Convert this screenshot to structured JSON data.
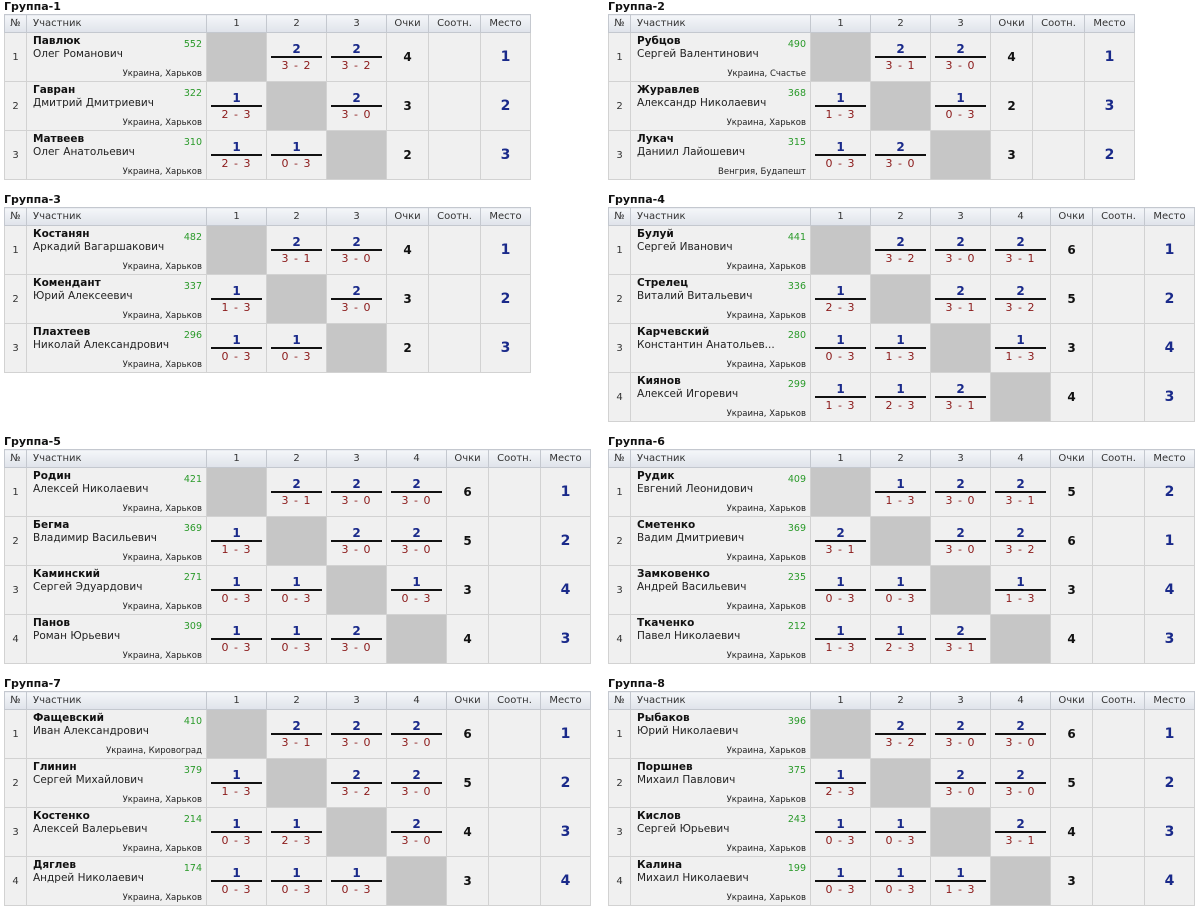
{
  "headers": {
    "num": "№",
    "player": "Участник",
    "points": "Очки",
    "ratio": "Соотн.",
    "place": "Место"
  },
  "groups": [
    {
      "title": "Группа-1",
      "cols": [
        "1",
        "2",
        "3"
      ],
      "players": [
        {
          "num": "1",
          "surname": "Павлюк",
          "first": "Олег Романович",
          "rating": "552",
          "city": "Украина, Харьков",
          "points": "4",
          "ratio": "",
          "place": "1",
          "cells": [
            null,
            {
              "w": "2",
              "s": "3 - 2"
            },
            {
              "w": "2",
              "s": "3 - 2"
            }
          ]
        },
        {
          "num": "2",
          "surname": "Гавран",
          "first": "Дмитрий Дмитриевич",
          "rating": "322",
          "city": "Украина, Харьков",
          "points": "3",
          "ratio": "",
          "place": "2",
          "cells": [
            {
              "w": "1",
              "s": "2 - 3"
            },
            null,
            {
              "w": "2",
              "s": "3 - 0"
            }
          ]
        },
        {
          "num": "3",
          "surname": "Матвеев",
          "first": "Олег Анатольевич",
          "rating": "310",
          "city": "Украина, Харьков",
          "points": "2",
          "ratio": "",
          "place": "3",
          "cells": [
            {
              "w": "1",
              "s": "2 - 3"
            },
            {
              "w": "1",
              "s": "0 - 3"
            },
            null
          ]
        }
      ]
    },
    {
      "title": "Группа-2",
      "cols": [
        "1",
        "2",
        "3"
      ],
      "players": [
        {
          "num": "1",
          "surname": "Рубцов",
          "first": "Сергей Валентинович",
          "rating": "490",
          "city": "Украина, Счастье",
          "points": "4",
          "ratio": "",
          "place": "1",
          "cells": [
            null,
            {
              "w": "2",
              "s": "3 - 1"
            },
            {
              "w": "2",
              "s": "3 - 0"
            }
          ]
        },
        {
          "num": "2",
          "surname": "Журавлев",
          "first": "Александр Николаевич",
          "rating": "368",
          "city": "Украина, Харьков",
          "points": "2",
          "ratio": "",
          "place": "3",
          "cells": [
            {
              "w": "1",
              "s": "1 - 3"
            },
            null,
            {
              "w": "1",
              "s": "0 - 3"
            }
          ]
        },
        {
          "num": "3",
          "surname": "Лукач",
          "first": "Даниил Лайошевич",
          "rating": "315",
          "city": "Венгрия, Будапешт",
          "points": "3",
          "ratio": "",
          "place": "2",
          "cells": [
            {
              "w": "1",
              "s": "0 - 3"
            },
            {
              "w": "2",
              "s": "3 - 0"
            },
            null
          ]
        }
      ]
    },
    {
      "title": "Группа-3",
      "cols": [
        "1",
        "2",
        "3"
      ],
      "players": [
        {
          "num": "1",
          "surname": "Костанян",
          "first": "Аркадий Вагаршакович",
          "rating": "482",
          "city": "Украина, Харьков",
          "points": "4",
          "ratio": "",
          "place": "1",
          "cells": [
            null,
            {
              "w": "2",
              "s": "3 - 1"
            },
            {
              "w": "2",
              "s": "3 - 0"
            }
          ]
        },
        {
          "num": "2",
          "surname": "Комендант",
          "first": "Юрий Алексеевич",
          "rating": "337",
          "city": "Украина, Харьков",
          "points": "3",
          "ratio": "",
          "place": "2",
          "cells": [
            {
              "w": "1",
              "s": "1 - 3"
            },
            null,
            {
              "w": "2",
              "s": "3 - 0"
            }
          ]
        },
        {
          "num": "3",
          "surname": "Плахтеев",
          "first": "Николай Александрович",
          "rating": "296",
          "city": "Украина, Харьков",
          "points": "2",
          "ratio": "",
          "place": "3",
          "cells": [
            {
              "w": "1",
              "s": "0 - 3"
            },
            {
              "w": "1",
              "s": "0 - 3"
            },
            null
          ]
        }
      ]
    },
    {
      "title": "Группа-4",
      "cols": [
        "1",
        "2",
        "3",
        "4"
      ],
      "players": [
        {
          "num": "1",
          "surname": "Булуй",
          "first": "Сергей Иванович",
          "rating": "441",
          "city": "Украина, Харьков",
          "points": "6",
          "ratio": "",
          "place": "1",
          "cells": [
            null,
            {
              "w": "2",
              "s": "3 - 2"
            },
            {
              "w": "2",
              "s": "3 - 0"
            },
            {
              "w": "2",
              "s": "3 - 1"
            }
          ]
        },
        {
          "num": "2",
          "surname": "Стрелец",
          "first": "Виталий Витальевич",
          "rating": "336",
          "city": "Украина, Харьков",
          "points": "5",
          "ratio": "",
          "place": "2",
          "cells": [
            {
              "w": "1",
              "s": "2 - 3"
            },
            null,
            {
              "w": "2",
              "s": "3 - 1"
            },
            {
              "w": "2",
              "s": "3 - 2"
            }
          ]
        },
        {
          "num": "3",
          "surname": "Карчевский",
          "first": "Константин Анатольев...",
          "rating": "280",
          "city": "Украина, Харьков",
          "points": "3",
          "ratio": "",
          "place": "4",
          "cells": [
            {
              "w": "1",
              "s": "0 - 3"
            },
            {
              "w": "1",
              "s": "1 - 3"
            },
            null,
            {
              "w": "1",
              "s": "1 - 3"
            }
          ]
        },
        {
          "num": "4",
          "surname": "Киянов",
          "first": "Алексей Игоревич",
          "rating": "299",
          "city": "Украина, Харьков",
          "points": "4",
          "ratio": "",
          "place": "3",
          "cells": [
            {
              "w": "1",
              "s": "1 - 3"
            },
            {
              "w": "1",
              "s": "2 - 3"
            },
            {
              "w": "2",
              "s": "3 - 1"
            },
            null
          ]
        }
      ]
    },
    {
      "title": "Группа-5",
      "cols": [
        "1",
        "2",
        "3",
        "4"
      ],
      "players": [
        {
          "num": "1",
          "surname": "Родин",
          "first": "Алексей Николаевич",
          "rating": "421",
          "city": "Украина, Харьков",
          "points": "6",
          "ratio": "",
          "place": "1",
          "cells": [
            null,
            {
              "w": "2",
              "s": "3 - 1"
            },
            {
              "w": "2",
              "s": "3 - 0"
            },
            {
              "w": "2",
              "s": "3 - 0"
            }
          ]
        },
        {
          "num": "2",
          "surname": "Бегма",
          "first": "Владимир Васильевич",
          "rating": "369",
          "city": "Украина, Харьков",
          "points": "5",
          "ratio": "",
          "place": "2",
          "cells": [
            {
              "w": "1",
              "s": "1 - 3"
            },
            null,
            {
              "w": "2",
              "s": "3 - 0"
            },
            {
              "w": "2",
              "s": "3 - 0"
            }
          ]
        },
        {
          "num": "3",
          "surname": "Каминский",
          "first": "Сергей Эдуардович",
          "rating": "271",
          "city": "Украина, Харьков",
          "points": "3",
          "ratio": "",
          "place": "4",
          "cells": [
            {
              "w": "1",
              "s": "0 - 3"
            },
            {
              "w": "1",
              "s": "0 - 3"
            },
            null,
            {
              "w": "1",
              "s": "0 - 3"
            }
          ]
        },
        {
          "num": "4",
          "surname": "Панов",
          "first": "Роман Юрьевич",
          "rating": "309",
          "city": "Украина, Харьков",
          "points": "4",
          "ratio": "",
          "place": "3",
          "cells": [
            {
              "w": "1",
              "s": "0 - 3"
            },
            {
              "w": "1",
              "s": "0 - 3"
            },
            {
              "w": "2",
              "s": "3 - 0"
            },
            null
          ]
        }
      ]
    },
    {
      "title": "Группа-6",
      "cols": [
        "1",
        "2",
        "3",
        "4"
      ],
      "players": [
        {
          "num": "1",
          "surname": "Рудик",
          "first": "Евгений Леонидович",
          "rating": "409",
          "city": "Украина, Харьков",
          "points": "5",
          "ratio": "",
          "place": "2",
          "cells": [
            null,
            {
              "w": "1",
              "s": "1 - 3"
            },
            {
              "w": "2",
              "s": "3 - 0"
            },
            {
              "w": "2",
              "s": "3 - 1"
            }
          ]
        },
        {
          "num": "2",
          "surname": "Сметенко",
          "first": "Вадим Дмитриевич",
          "rating": "369",
          "city": "Украина, Харьков",
          "points": "6",
          "ratio": "",
          "place": "1",
          "cells": [
            {
              "w": "2",
              "s": "3 - 1"
            },
            null,
            {
              "w": "2",
              "s": "3 - 0"
            },
            {
              "w": "2",
              "s": "3 - 2"
            }
          ]
        },
        {
          "num": "3",
          "surname": "Замковенко",
          "first": "Андрей Васильевич",
          "rating": "235",
          "city": "Украина, Харьков",
          "points": "3",
          "ratio": "",
          "place": "4",
          "cells": [
            {
              "w": "1",
              "s": "0 - 3"
            },
            {
              "w": "1",
              "s": "0 - 3"
            },
            null,
            {
              "w": "1",
              "s": "1 - 3"
            }
          ]
        },
        {
          "num": "4",
          "surname": "Ткаченко",
          "first": "Павел Николаевич",
          "rating": "212",
          "city": "Украина, Харьков",
          "points": "4",
          "ratio": "",
          "place": "3",
          "cells": [
            {
              "w": "1",
              "s": "1 - 3"
            },
            {
              "w": "1",
              "s": "2 - 3"
            },
            {
              "w": "2",
              "s": "3 - 1"
            },
            null
          ]
        }
      ]
    },
    {
      "title": "Группа-7",
      "cols": [
        "1",
        "2",
        "3",
        "4"
      ],
      "players": [
        {
          "num": "1",
          "surname": "Фащевский",
          "first": "Иван Александрович",
          "rating": "410",
          "city": "Украина, Кировоград",
          "points": "6",
          "ratio": "",
          "place": "1",
          "cells": [
            null,
            {
              "w": "2",
              "s": "3 - 1"
            },
            {
              "w": "2",
              "s": "3 - 0"
            },
            {
              "w": "2",
              "s": "3 - 0"
            }
          ]
        },
        {
          "num": "2",
          "surname": "Глинин",
          "first": "Сергей Михайлович",
          "rating": "379",
          "city": "Украина, Харьков",
          "points": "5",
          "ratio": "",
          "place": "2",
          "cells": [
            {
              "w": "1",
              "s": "1 - 3"
            },
            null,
            {
              "w": "2",
              "s": "3 - 2"
            },
            {
              "w": "2",
              "s": "3 - 0"
            }
          ]
        },
        {
          "num": "3",
          "surname": "Костенко",
          "first": "Алексей Валерьевич",
          "rating": "214",
          "city": "Украина, Харьков",
          "points": "4",
          "ratio": "",
          "place": "3",
          "cells": [
            {
              "w": "1",
              "s": "0 - 3"
            },
            {
              "w": "1",
              "s": "2 - 3"
            },
            null,
            {
              "w": "2",
              "s": "3 - 0"
            }
          ]
        },
        {
          "num": "4",
          "surname": "Дяглев",
          "first": "Андрей Николаевич",
          "rating": "174",
          "city": "Украина, Харьков",
          "points": "3",
          "ratio": "",
          "place": "4",
          "cells": [
            {
              "w": "1",
              "s": "0 - 3"
            },
            {
              "w": "1",
              "s": "0 - 3"
            },
            {
              "w": "1",
              "s": "0 - 3"
            },
            null
          ]
        }
      ]
    },
    {
      "title": "Группа-8",
      "cols": [
        "1",
        "2",
        "3",
        "4"
      ],
      "players": [
        {
          "num": "1",
          "surname": "Рыбаков",
          "first": "Юрий Николаевич",
          "rating": "396",
          "city": "Украина, Харьков",
          "points": "6",
          "ratio": "",
          "place": "1",
          "cells": [
            null,
            {
              "w": "2",
              "s": "3 - 2"
            },
            {
              "w": "2",
              "s": "3 - 0"
            },
            {
              "w": "2",
              "s": "3 - 0"
            }
          ]
        },
        {
          "num": "2",
          "surname": "Поршнев",
          "first": "Михаил Павлович",
          "rating": "375",
          "city": "Украина, Харьков",
          "points": "5",
          "ratio": "",
          "place": "2",
          "cells": [
            {
              "w": "1",
              "s": "2 - 3"
            },
            null,
            {
              "w": "2",
              "s": "3 - 0"
            },
            {
              "w": "2",
              "s": "3 - 0"
            }
          ]
        },
        {
          "num": "3",
          "surname": "Кислов",
          "first": "Сергей Юрьевич",
          "rating": "243",
          "city": "Украина, Харьков",
          "points": "4",
          "ratio": "",
          "place": "3",
          "cells": [
            {
              "w": "1",
              "s": "0 - 3"
            },
            {
              "w": "1",
              "s": "0 - 3"
            },
            null,
            {
              "w": "2",
              "s": "3 - 1"
            }
          ]
        },
        {
          "num": "4",
          "surname": "Калина",
          "first": "Михаил Николаевич",
          "rating": "199",
          "city": "Украина, Харьков",
          "points": "3",
          "ratio": "",
          "place": "4",
          "cells": [
            {
              "w": "1",
              "s": "0 - 3"
            },
            {
              "w": "1",
              "s": "0 - 3"
            },
            {
              "w": "1",
              "s": "1 - 3"
            },
            null
          ]
        }
      ]
    }
  ]
}
